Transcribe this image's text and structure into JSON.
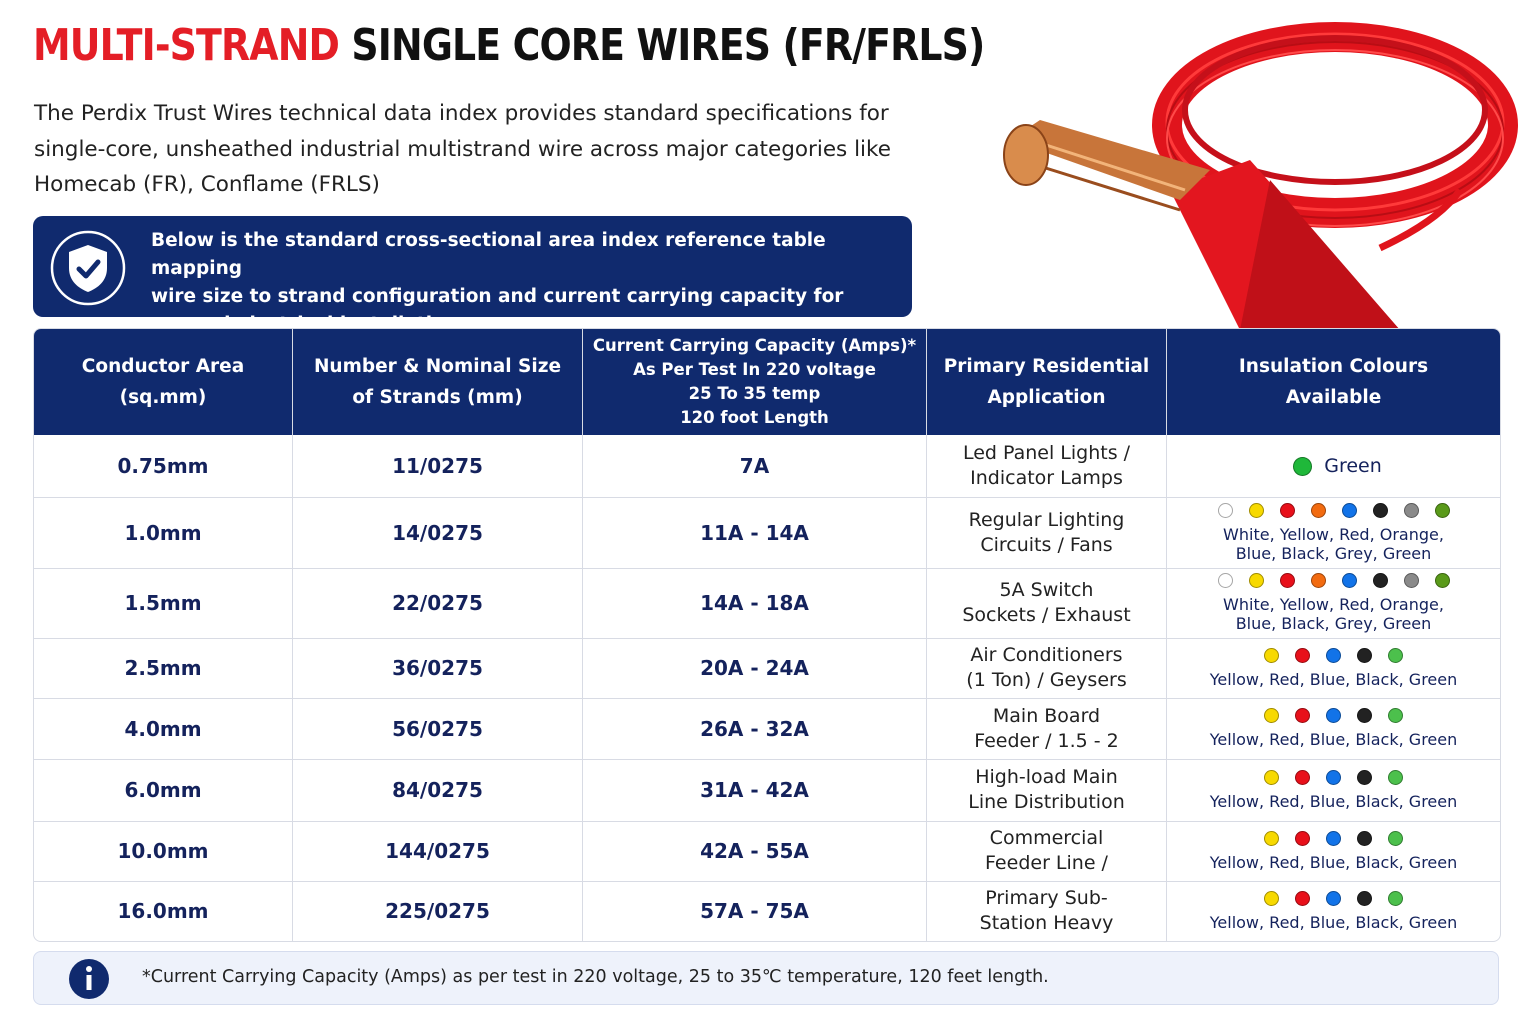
{
  "header": {
    "title_accent": "MULTI-STRAND",
    "title_rest": "SINGLE CORE WIRES (FR/FRLS)",
    "intro_lines": [
      "The Perdix Trust Wires technical data index provides standard specifications for",
      "single-core, unsheathed industrial multistrand wire across major categories like",
      "Homecab (FR), Conflame (FRLS)"
    ]
  },
  "callout": {
    "lines": [
      "Below is the standard cross-sectional area index reference table mapping",
      "wire size to strand configuration and current carrying capacity for",
      "general electrical installations:"
    ]
  },
  "table": {
    "columns": [
      [
        "Conductor Area",
        "(sq.mm)"
      ],
      [
        "Number & Nominal Size",
        "of Strands (mm)"
      ],
      [
        "Current Carrying Capacity (Amps)*",
        "As Per Test In 220 voltage",
        "25 To 35 temp",
        "120 foot Length"
      ],
      [
        "Primary Residential",
        "Application"
      ],
      [
        "Insulation Colours",
        "Available"
      ]
    ],
    "rows": [
      {
        "area": "0.75mm",
        "strands": "11/0275",
        "current": "7A",
        "application": [
          "Led Panel Lights /",
          "Indicator Lamps"
        ],
        "colours": [
          "Green"
        ],
        "swatches": [
          "#1fb83a"
        ]
      },
      {
        "area": "1.0mm",
        "strands": "14/0275",
        "current": "11A - 14A",
        "application": [
          "Regular Lighting",
          "Circuits / Fans"
        ],
        "colours": [
          "White, Yellow, Red, Orange,",
          "Blue, Black, Grey, Green"
        ],
        "swatches": [
          "#ffffff",
          "#f7d900",
          "#e8101a",
          "#f26b10",
          "#1273e8",
          "#222222",
          "#8a8a8a",
          "#5a9a1a"
        ]
      },
      {
        "area": "1.5mm",
        "strands": "22/0275",
        "current": "14A - 18A",
        "application": [
          "5A Switch",
          "Sockets / Exhaust"
        ],
        "colours": [
          "White, Yellow, Red, Orange,",
          "Blue, Black, Grey, Green"
        ],
        "swatches": [
          "#ffffff",
          "#f7d900",
          "#e8101a",
          "#f26b10",
          "#1273e8",
          "#222222",
          "#8a8a8a",
          "#5a9a1a"
        ]
      },
      {
        "area": "2.5mm",
        "strands": "36/0275",
        "current": "20A - 24A",
        "application": [
          "Air Conditioners",
          "(1 Ton) / Geysers"
        ],
        "colours": [
          "Yellow, Red, Blue, Black, Green"
        ],
        "swatches": [
          "#f7d900",
          "#e8101a",
          "#1273e8",
          "#222222",
          "#4cc04c"
        ]
      },
      {
        "area": "4.0mm",
        "strands": "56/0275",
        "current": "26A - 32A",
        "application": [
          "Main Board",
          "Feeder / 1.5 - 2"
        ],
        "colours": [
          "Yellow, Red, Blue, Black, Green"
        ],
        "swatches": [
          "#f7d900",
          "#e8101a",
          "#1273e8",
          "#222222",
          "#4cc04c"
        ]
      },
      {
        "area": "6.0mm",
        "strands": "84/0275",
        "current": "31A - 42A",
        "application": [
          "High-load Main",
          "Line Distribution"
        ],
        "colours": [
          "Yellow, Red, Blue, Black, Green"
        ],
        "swatches": [
          "#f7d900",
          "#e8101a",
          "#1273e8",
          "#222222",
          "#4cc04c"
        ]
      },
      {
        "area": "10.0mm",
        "strands": "144/0275",
        "current": "42A - 55A",
        "application": [
          "Commercial",
          "Feeder Line /"
        ],
        "colours": [
          "Yellow, Red, Blue, Black, Green"
        ],
        "swatches": [
          "#f7d900",
          "#e8101a",
          "#1273e8",
          "#222222",
          "#4cc04c"
        ]
      },
      {
        "area": "16.0mm",
        "strands": "225/0275",
        "current": "57A - 75A",
        "application": [
          "Primary Sub-",
          "Station Heavy"
        ],
        "colours": [
          "Yellow, Red, Blue, Black, Green"
        ],
        "swatches": [
          "#f7d900",
          "#e8101a",
          "#1273e8",
          "#222222",
          "#4cc04c"
        ]
      }
    ]
  },
  "footnote": "*Current Carrying Capacity (Amps) as per test in 220 voltage, 25 to 35℃ temperature, 120 feet length."
}
